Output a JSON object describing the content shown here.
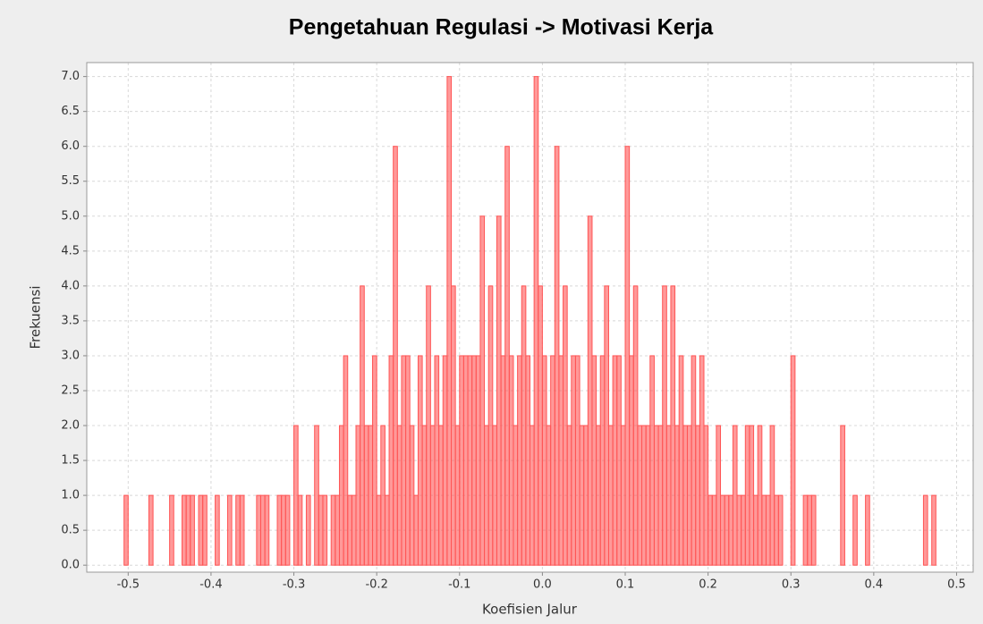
{
  "chart_data": {
    "type": "histogram",
    "title": "Pengetahuan Regulasi -> Motivasi Kerja",
    "x_label": "Koefisien Jalur",
    "y_label": "Frekuensi",
    "color": "#ff5555",
    "grid": true,
    "xlim": [
      -0.55,
      0.52
    ],
    "ylim": [
      -0.1,
      7.2
    ],
    "xticks": [
      -0.5,
      -0.4,
      -0.3,
      -0.2,
      -0.1,
      {
        "value": 0,
        "label": "0.0"
      },
      0.1,
      0.2,
      0.3,
      0.4,
      0.5
    ],
    "yticks": [
      {
        "value": 0,
        "label": "0.0"
      },
      0.5,
      {
        "value": 1,
        "label": "1.0"
      },
      1.5,
      {
        "value": 2,
        "label": "2.0"
      },
      2.5,
      {
        "value": 3,
        "label": "3.0"
      },
      3.5,
      {
        "value": 4,
        "label": "4.0"
      },
      4.5,
      {
        "value": 5,
        "label": "5.0"
      },
      5.5,
      {
        "value": 6,
        "label": "6.0"
      },
      6.5,
      {
        "value": 7,
        "label": "7.0"
      }
    ],
    "bins": [
      -0.51,
      -0.505,
      -0.5,
      -0.495,
      -0.49,
      -0.485,
      -0.48,
      -0.475,
      -0.47,
      -0.465,
      -0.46,
      -0.455,
      -0.45,
      -0.445,
      -0.44,
      -0.435,
      -0.43,
      -0.425,
      -0.42,
      -0.415,
      -0.41,
      -0.405,
      -0.4,
      -0.395,
      -0.39,
      -0.385,
      -0.38,
      -0.375,
      -0.37,
      -0.365,
      -0.36,
      -0.355,
      -0.35,
      -0.345,
      -0.34,
      -0.335,
      -0.33,
      -0.325,
      -0.32,
      -0.315,
      -0.31,
      -0.305,
      -0.3,
      -0.295,
      -0.29,
      -0.285,
      -0.28,
      -0.275,
      -0.27,
      -0.265,
      -0.26,
      -0.255,
      -0.25,
      -0.245,
      -0.24,
      -0.235,
      -0.23,
      -0.225,
      -0.22,
      -0.215,
      -0.21,
      -0.205,
      -0.2,
      -0.195,
      -0.19,
      -0.185,
      -0.18,
      -0.175,
      -0.17,
      -0.165,
      -0.16,
      -0.155,
      -0.15,
      -0.145,
      -0.14,
      -0.135,
      -0.13,
      -0.125,
      -0.12,
      -0.115,
      -0.11,
      -0.105,
      -0.1,
      -0.095,
      -0.09,
      -0.085,
      -0.08,
      -0.075,
      -0.07,
      -0.065,
      -0.06,
      -0.055,
      -0.05,
      -0.045,
      -0.04,
      -0.035,
      -0.03,
      -0.025,
      -0.02,
      -0.015,
      -0.01,
      -0.005,
      0,
      0.005,
      0.01,
      0.015,
      0.02,
      0.025,
      0.03,
      0.035,
      0.04,
      0.045,
      0.05,
      0.055,
      0.06,
      0.065,
      0.07,
      0.075,
      0.08,
      0.085,
      0.09,
      0.095,
      0.1,
      0.105,
      0.11,
      0.115,
      0.12,
      0.125,
      0.13,
      0.135,
      0.14,
      0.145,
      0.15,
      0.155,
      0.16,
      0.165,
      0.17,
      0.175,
      0.18,
      0.185,
      0.19,
      0.195,
      0.2,
      0.205,
      0.21,
      0.215,
      0.22,
      0.225,
      0.23,
      0.235,
      0.24,
      0.245,
      0.25,
      0.255,
      0.26,
      0.265,
      0.27,
      0.275,
      0.28,
      0.285,
      0.29,
      0.295,
      0.3,
      0.305,
      0.31,
      0.315,
      0.32,
      0.325,
      0.33,
      0.335,
      0.34,
      0.345,
      0.35,
      0.355,
      0.36,
      0.365,
      0.37,
      0.375,
      0.38,
      0.385,
      0.39,
      0.395,
      0.4,
      0.405,
      0.41,
      0.415,
      0.42,
      0.425,
      0.43,
      0.435,
      0.44,
      0.445,
      0.45,
      0.455,
      0.46,
      0.465,
      0.47,
      0.475,
      0.48
    ],
    "values": [
      0,
      1,
      0,
      0,
      0,
      0,
      0,
      1,
      0,
      0,
      0,
      0,
      1,
      0,
      0,
      1,
      1,
      1,
      0,
      1,
      1,
      0,
      0,
      1,
      0,
      0,
      1,
      0,
      1,
      1,
      0,
      0,
      0,
      1,
      1,
      1,
      0,
      0,
      1,
      1,
      1,
      0,
      2,
      1,
      0,
      1,
      0,
      2,
      1,
      1,
      0,
      1,
      1,
      2,
      3,
      1,
      1,
      2,
      4,
      2,
      2,
      3,
      1,
      2,
      1,
      3,
      6,
      2,
      3,
      3,
      2,
      1,
      3,
      2,
      4,
      2,
      3,
      2,
      3,
      7,
      4,
      2,
      3,
      3,
      3,
      3,
      3,
      5,
      2,
      4,
      2,
      5,
      3,
      6,
      3,
      2,
      3,
      4,
      3,
      2,
      7,
      4,
      3,
      2,
      3,
      6,
      3,
      4,
      2,
      3,
      3,
      2,
      2,
      5,
      3,
      2,
      3,
      4,
      2,
      3,
      3,
      2,
      6,
      3,
      4,
      2,
      2,
      2,
      3,
      2,
      2,
      4,
      2,
      4,
      2,
      3,
      2,
      2,
      3,
      2,
      3,
      2,
      1,
      1,
      2,
      1,
      1,
      1,
      2,
      1,
      1,
      2,
      2,
      1,
      2,
      1,
      1,
      2,
      1,
      1,
      0,
      0,
      3,
      0,
      0,
      1,
      1,
      1,
      0,
      0,
      0,
      0,
      0,
      0,
      2,
      0,
      0,
      1,
      0,
      0,
      1,
      0,
      0,
      0,
      0,
      0,
      0,
      0,
      0,
      0,
      0,
      0,
      0,
      0,
      1,
      0,
      1,
      0
    ]
  }
}
